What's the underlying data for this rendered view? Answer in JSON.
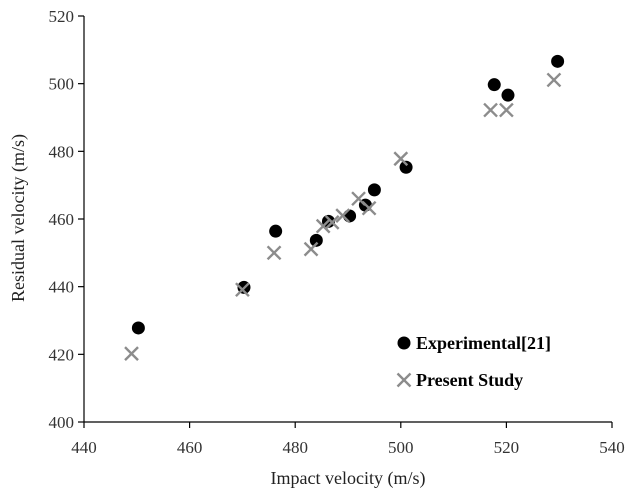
{
  "chart_data": {
    "type": "scatter",
    "title": "",
    "xlabel": "Impact velocity (m/s)",
    "ylabel": "Residual velocity (m/s)",
    "xlim": [
      440,
      540
    ],
    "ylim": [
      400,
      520
    ],
    "xticks": [
      440,
      460,
      480,
      500,
      520,
      540
    ],
    "yticks": [
      400,
      420,
      440,
      460,
      480,
      500,
      520
    ],
    "grid": false,
    "legend_position": "bottom-right",
    "series": [
      {
        "name": "Experimental[21]",
        "marker": "filled-circle",
        "color": "#000000",
        "points": [
          [
            450.3,
            427.8
          ],
          [
            470.3,
            439.8
          ],
          [
            476.3,
            456.4
          ],
          [
            484.0,
            453.7
          ],
          [
            486.3,
            459.3
          ],
          [
            490.3,
            460.9
          ],
          [
            493.3,
            464.1
          ],
          [
            495.0,
            468.6
          ],
          [
            501.0,
            475.3
          ],
          [
            517.7,
            499.7
          ],
          [
            520.3,
            496.6
          ],
          [
            529.7,
            506.6
          ]
        ]
      },
      {
        "name": "Present Study",
        "marker": "x",
        "color": "#8c8c8c",
        "points": [
          [
            449.0,
            420.2
          ],
          [
            470.0,
            439.1
          ],
          [
            476.0,
            450.0
          ],
          [
            483.0,
            451.1
          ],
          [
            485.3,
            457.9
          ],
          [
            487.0,
            459.0
          ],
          [
            489.0,
            461.0
          ],
          [
            492.0,
            466.0
          ],
          [
            494.0,
            463.2
          ],
          [
            500.0,
            477.8
          ],
          [
            517.0,
            492.2
          ],
          [
            520.0,
            492.2
          ],
          [
            529.0,
            501.1
          ]
        ]
      }
    ]
  }
}
